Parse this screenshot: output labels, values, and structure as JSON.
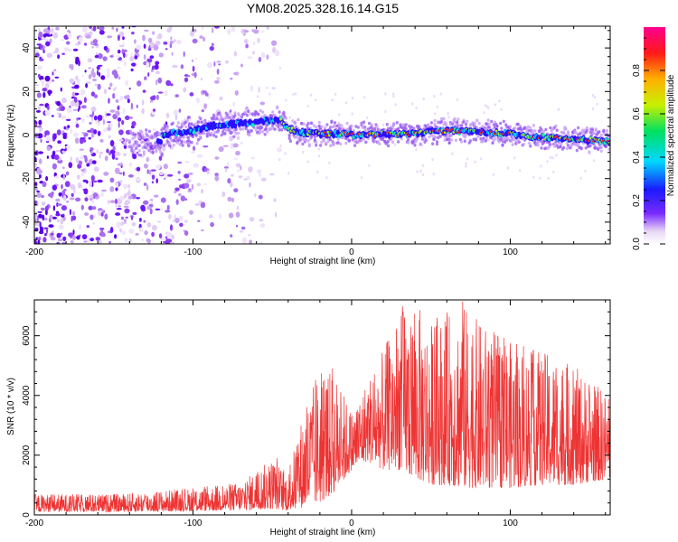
{
  "title": "YM08.2025.328.16.14.G15",
  "chart_data": [
    {
      "type": "heatmap",
      "name": "spectrogram",
      "xlabel": "Height of straight line (km)",
      "ylabel": "Frequency (Hz)",
      "xlim": [
        -200,
        163
      ],
      "ylim": [
        -50,
        50
      ],
      "xticks": [
        -200,
        -100,
        0,
        100
      ],
      "yticks": [
        -40,
        -20,
        0,
        20,
        40
      ],
      "colorbar": {
        "label": "Normalized spectral amplitude",
        "range": [
          0,
          1
        ],
        "ticks": [
          0.0,
          0.2,
          0.4,
          0.6,
          0.8
        ]
      },
      "ridge": [
        {
          "x": -120,
          "y": 0.0
        },
        {
          "x": -110,
          "y": 1.0
        },
        {
          "x": -100,
          "y": 2.0
        },
        {
          "x": -90,
          "y": 4.0
        },
        {
          "x": -75,
          "y": 5.0
        },
        {
          "x": -60,
          "y": 6.0
        },
        {
          "x": -45,
          "y": 7.0
        },
        {
          "x": -40,
          "y": 3.0
        },
        {
          "x": -30,
          "y": 1.0
        },
        {
          "x": -20,
          "y": 0.5
        },
        {
          "x": -10,
          "y": 0.5
        },
        {
          "x": 0,
          "y": 0.0
        },
        {
          "x": 20,
          "y": 0.5
        },
        {
          "x": 40,
          "y": 1.0
        },
        {
          "x": 60,
          "y": 2.0
        },
        {
          "x": 80,
          "y": 1.5
        },
        {
          "x": 100,
          "y": 0.5
        },
        {
          "x": 120,
          "y": -1.0
        },
        {
          "x": 140,
          "y": -2.0
        },
        {
          "x": 163,
          "y": -3.0
        }
      ],
      "noise_region_x": [
        -200,
        -70
      ]
    },
    {
      "type": "line",
      "name": "snr",
      "xlabel": "Height of straight line (km)",
      "ylabel": "SNR (10 * v/v)",
      "xlim": [
        -200,
        163
      ],
      "ylim": [
        0,
        7200
      ],
      "xticks": [
        -200,
        -100,
        0,
        100
      ],
      "yticks": [
        0,
        2000,
        4000,
        6000
      ],
      "color": "#ee3333",
      "envelope": {
        "x": [
          -200,
          -150,
          -100,
          -70,
          -50,
          -40,
          -30,
          -20,
          -10,
          0,
          10,
          20,
          30,
          40,
          50,
          60,
          70,
          80,
          90,
          100,
          120,
          140,
          163
        ],
        "lower": [
          100,
          100,
          120,
          150,
          200,
          150,
          250,
          400,
          800,
          1500,
          1800,
          1500,
          1500,
          1200,
          1000,
          1000,
          900,
          900,
          900,
          900,
          1000,
          1000,
          1200
        ],
        "upper": [
          700,
          700,
          900,
          1100,
          1900,
          1400,
          3600,
          4900,
          4700,
          3500,
          4600,
          5500,
          6900,
          7100,
          6500,
          6800,
          7100,
          6500,
          6200,
          5800,
          5500,
          5000,
          4000
        ]
      },
      "peaks": [
        {
          "x": 32,
          "y": 7000
        },
        {
          "x": 70,
          "y": 7150
        },
        {
          "x": -12,
          "y": 4900
        },
        {
          "x": -47,
          "y": 1900
        }
      ]
    }
  ]
}
